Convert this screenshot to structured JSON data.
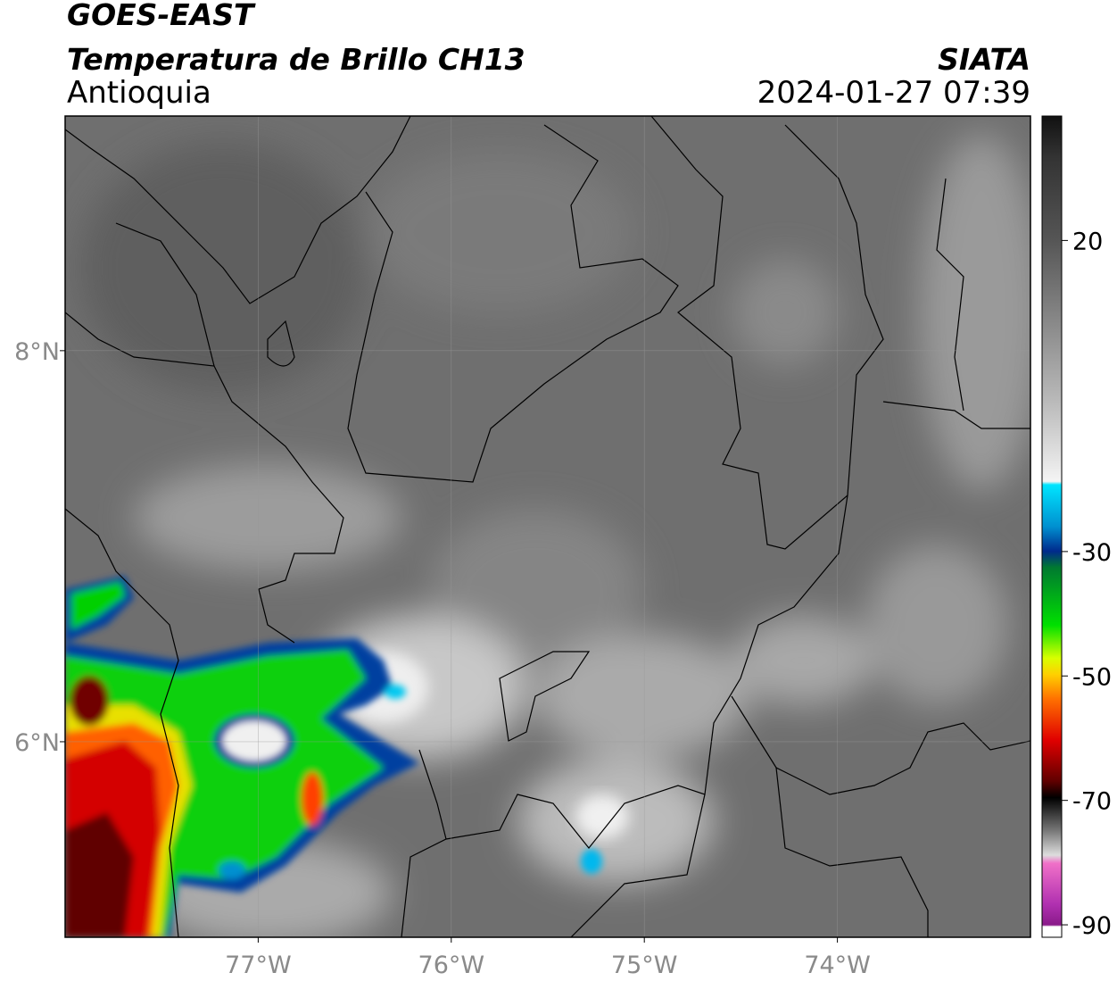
{
  "header": {
    "title": "GOES-EAST",
    "subtitle": "Temperatura de Brillo CH13",
    "region": "Antioquia",
    "source": "SIATA",
    "datetime": "2024-01-27 07:39"
  },
  "map": {
    "xlim": [
      -78,
      -73
    ],
    "ylim": [
      5,
      9.2
    ],
    "xticks": [
      {
        "value": -77,
        "label": "77°W"
      },
      {
        "value": -76,
        "label": "76°W"
      },
      {
        "value": -75,
        "label": "75°W"
      },
      {
        "value": -74,
        "label": "74°W"
      }
    ],
    "yticks": [
      {
        "value": 6,
        "label": "6°N"
      },
      {
        "value": 8,
        "label": "8°N"
      }
    ],
    "grid": true
  },
  "colorbar": {
    "clim": [
      -92,
      40
    ],
    "ticks": [
      20,
      -30,
      -50,
      -70,
      -90
    ]
  }
}
